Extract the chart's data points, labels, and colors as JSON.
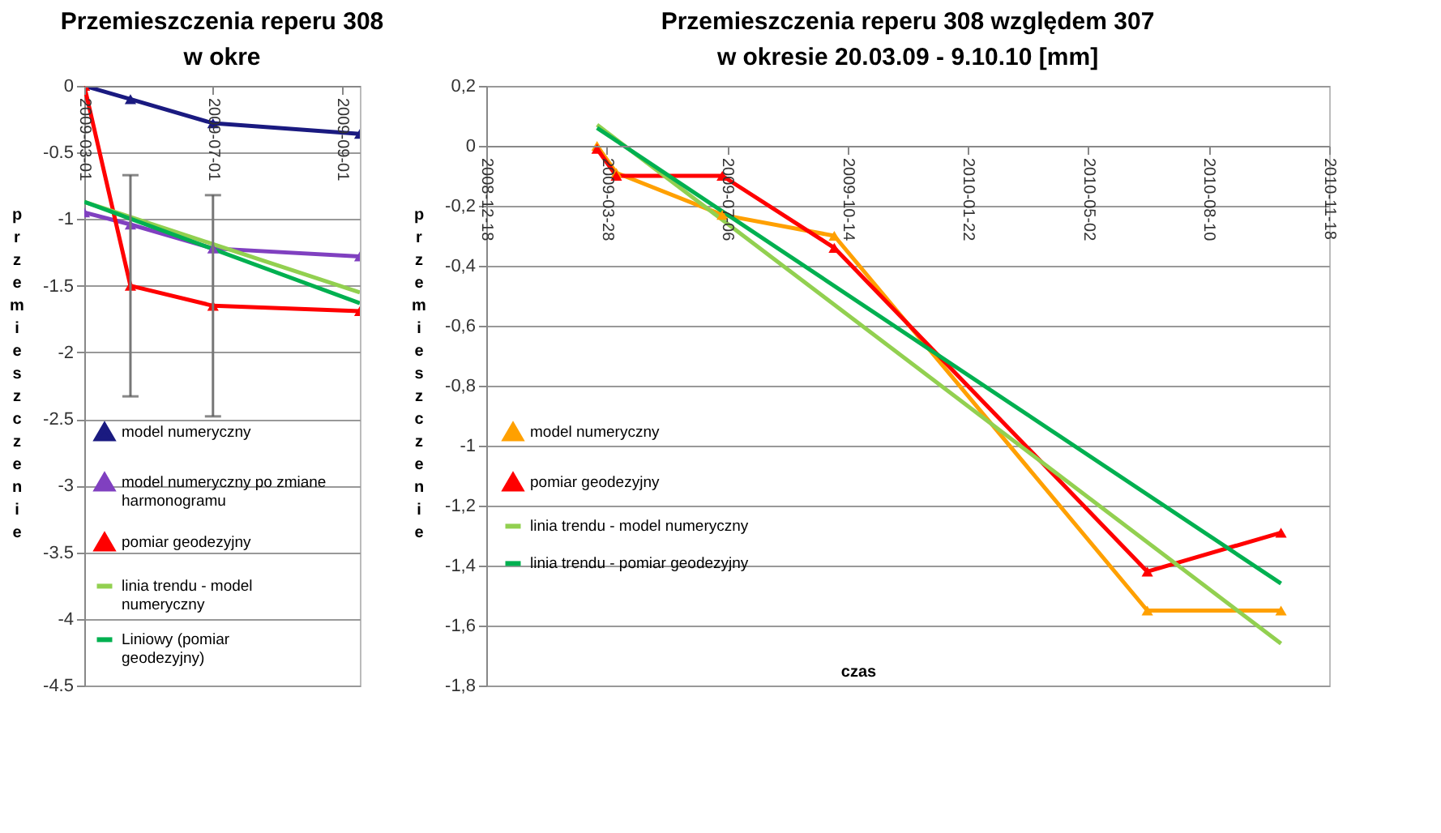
{
  "chart_data": [
    {
      "type": "line",
      "title": "Przemieszczenia reperu 308",
      "subtitle": "w okre",
      "ylabel": "przemieszczenie",
      "x": [
        "2009-03-01",
        "2009-04-03",
        "2009-06-01",
        "2009-09-14"
      ],
      "xlim": [
        "2009-03-01",
        "2009-09-14"
      ],
      "xticks": [
        {
          "value": "2009-03-01",
          "label": "2009-03-01"
        },
        {
          "value": "2009-06-01",
          "label": "2009-07-01"
        },
        {
          "value": "2009-09-01",
          "label": "2009-09-01"
        }
      ],
      "ylim": [
        -4.5,
        0
      ],
      "yticks": [
        0,
        -0.5,
        -1,
        -1.5,
        -2,
        -2.5,
        -3,
        -3.5,
        -4,
        -4.5
      ],
      "grid": "y",
      "legend": "bottom left",
      "series": [
        {
          "name": "model numeryczny",
          "color": "#1a1a80",
          "marker": "triangle",
          "values": [
            0,
            -0.1,
            -0.28,
            -0.36
          ]
        },
        {
          "name": "model numeryczny po zmiane harmonogramu",
          "color": "#8040c0",
          "marker": "triangle",
          "values": [
            -0.95,
            -1.04,
            -1.22,
            -1.28
          ]
        },
        {
          "name": "pomiar geodezyjny",
          "color": "#ff0000",
          "marker": "triangle",
          "values": [
            0,
            -1.5,
            -1.65,
            -1.69
          ],
          "errors": [
            null,
            0.83,
            0.83,
            null
          ]
        },
        {
          "name": "linia trendu - model numeryczny",
          "color": "#92d050",
          "marker": "none",
          "x": [
            "2009-03-01",
            "2009-09-14"
          ],
          "values": [
            -0.87,
            -1.55
          ]
        },
        {
          "name": "Liniowy (pomiar geodezyjny)",
          "color": "#00b050",
          "marker": "none",
          "x": [
            "2009-03-01",
            "2009-09-14"
          ],
          "values": [
            -0.87,
            -1.63
          ]
        }
      ]
    },
    {
      "type": "line",
      "title": "Przemieszczenia reperu 308 względem 307",
      "subtitle": "w okresie 20.03.09 - 9.10.10  [mm]",
      "ylabel": "przemieszczenie",
      "xlabel": "czas",
      "x": [
        "2009-03-20",
        "2009-04-05",
        "2009-07-02",
        "2009-10-03",
        "2010-06-20",
        "2010-10-09"
      ],
      "xlim": [
        "2008-12-18",
        "2010-11-18"
      ],
      "xticks": [
        "2008-12-18",
        "2009-03-28",
        "2009-07-06",
        "2009-10-14",
        "2010-01-22",
        "2010-05-02",
        "2010-08-10",
        "2010-11-18"
      ],
      "ylim": [
        -1.8,
        0.2
      ],
      "yticks": [
        {
          "value": 0.2,
          "label": "0,2"
        },
        0,
        {
          "value": -0.2,
          "label": "-0,2"
        },
        {
          "value": -0.4,
          "label": "-0,4"
        },
        {
          "value": -0.6,
          "label": "-0,6"
        },
        {
          "value": -0.8,
          "label": "-0,8"
        },
        -1,
        {
          "value": -1.2,
          "label": "-1,2"
        },
        {
          "value": -1.4,
          "label": "-1,4"
        },
        {
          "value": -1.6,
          "label": "-1,6"
        },
        {
          "value": -1.8,
          "label": "-1,8"
        }
      ],
      "grid": "y",
      "legend": "bottom left",
      "series": [
        {
          "name": "model numeryczny",
          "color": "#ffa000",
          "marker": "triangle",
          "values": [
            0,
            -0.09,
            -0.23,
            -0.3,
            -1.55,
            -1.55
          ]
        },
        {
          "name": "pomiar geodezyjny",
          "color": "#ff0000",
          "marker": "triangle",
          "values": [
            -0.01,
            -0.1,
            -0.1,
            -0.34,
            -1.42,
            -1.29
          ]
        },
        {
          "name": "linia trendu - model numeryczny",
          "color": "#92d050",
          "marker": "none",
          "x": [
            "2009-03-20",
            "2010-10-09"
          ],
          "values": [
            0.07,
            -1.66
          ]
        },
        {
          "name": "linia trendu - pomiar geodezyjny",
          "color": "#00b050",
          "marker": "none",
          "x": [
            "2009-03-20",
            "2010-10-09"
          ],
          "values": [
            0.06,
            -1.46
          ]
        }
      ]
    }
  ]
}
